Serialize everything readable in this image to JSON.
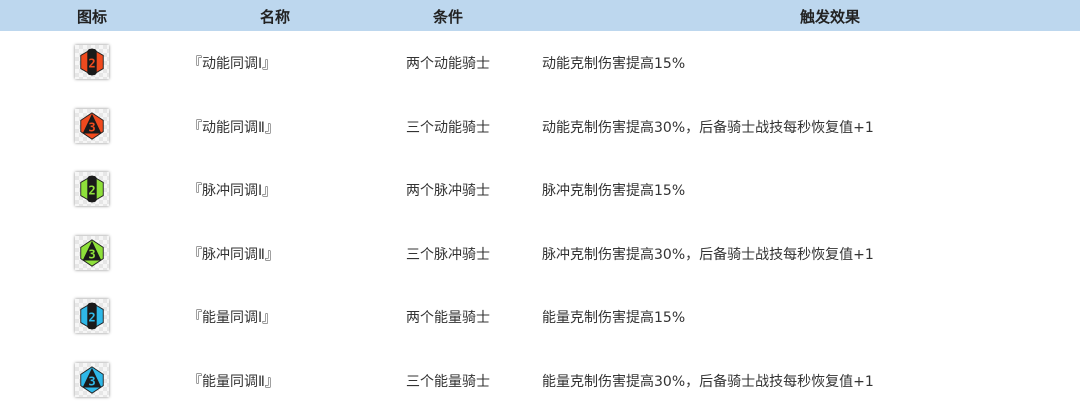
{
  "header": {
    "icon": "图标",
    "name": "名称",
    "condition": "条件",
    "effect": "触发效果"
  },
  "rows": [
    {
      "icon": "kinetic-2-icon",
      "color": "#f04a1e",
      "num": "2",
      "name": "『动能同调Ⅰ』",
      "condition": "两个动能骑士",
      "effect": "动能克制伤害提高15%"
    },
    {
      "icon": "kinetic-3-icon",
      "color": "#f04a1e",
      "num": "3",
      "name": "『动能同调Ⅱ』",
      "condition": "三个动能骑士",
      "effect": "动能克制伤害提高30%，后备骑士战技每秒恢复值+1"
    },
    {
      "icon": "pulse-2-icon",
      "color": "#8ee03a",
      "num": "2",
      "name": "『脉冲同调Ⅰ』",
      "condition": "两个脉冲骑士",
      "effect": "脉冲克制伤害提高15%"
    },
    {
      "icon": "pulse-3-icon",
      "color": "#8ee03a",
      "num": "3",
      "name": "『脉冲同调Ⅱ』",
      "condition": "三个脉冲骑士",
      "effect": "脉冲克制伤害提高30%，后备骑士战技每秒恢复值+1"
    },
    {
      "icon": "energy-2-icon",
      "color": "#2fb8e8",
      "num": "2",
      "name": "『能量同调Ⅰ』",
      "condition": "两个能量骑士",
      "effect": "能量克制伤害提高15%"
    },
    {
      "icon": "energy-3-icon",
      "color": "#2fb8e8",
      "num": "3",
      "name": "『能量同调Ⅱ』",
      "condition": "三个能量骑士",
      "effect": "能量克制伤害提高30%，后备骑士战技每秒恢复值+1"
    }
  ]
}
